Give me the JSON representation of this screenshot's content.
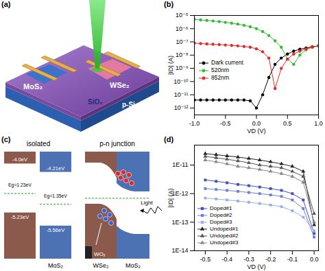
{
  "chart_data": [
    {
      "type": "line",
      "panel_label": "(b)",
      "x_label": "VD (V)",
      "y_label": "|ID| (A)",
      "log": "y",
      "grid": false,
      "legend": "center left",
      "marker": "circle",
      "line_style": "solid",
      "xlim": [
        -1,
        1
      ],
      "xticks": [
        {
          "value": -1,
          "label": "-1.0"
        },
        {
          "value": -0.5,
          "label": "-0.5"
        },
        {
          "value": 0,
          "label": "0.0"
        },
        {
          "value": 0.5,
          "label": "0.5"
        },
        {
          "value": 1,
          "label": "1.0"
        }
      ],
      "ylim": [
        3e-13,
        1e-05
      ],
      "yticks": [
        {
          "value": 1e-12,
          "label": "10⁻¹²"
        },
        {
          "value": 1e-11,
          "label": "10⁻¹¹"
        },
        {
          "value": 1e-10,
          "label": "10⁻¹⁰"
        },
        {
          "value": 1e-09,
          "label": "10⁻⁹"
        },
        {
          "value": 1e-08,
          "label": "10⁻⁸"
        },
        {
          "value": 1e-07,
          "label": "10⁻⁷"
        },
        {
          "value": 1e-06,
          "label": "10⁻⁶"
        },
        {
          "value": 1e-05,
          "label": "10⁻⁵"
        }
      ],
      "x": [
        -1.0,
        -0.9,
        -0.8,
        -0.7,
        -0.6,
        -0.5,
        -0.4,
        -0.3,
        -0.2,
        -0.1,
        0.0,
        0.1,
        0.2,
        0.3,
        0.4,
        0.5,
        0.6,
        0.7,
        0.8,
        0.9,
        1.0
      ],
      "series": [
        {
          "name": "Dark current",
          "color": "#000000",
          "values": [
            4e-12,
            4e-12,
            4e-12,
            4e-12,
            4e-12,
            4e-12,
            4e-12,
            4e-12,
            4e-12,
            3.5e-12,
            1e-12,
            1e-11,
            2e-10,
            2e-09,
            6e-09,
            1.2e-08,
            2e-08,
            2.8e-08,
            3.5e-08,
            4.2e-08,
            5e-08
          ]
        },
        {
          "name": "520nm",
          "color": "#33bb33",
          "values": [
            5e-06,
            4.6e-06,
            4.2e-06,
            3.8e-06,
            3.4e-06,
            3e-06,
            2.6e-06,
            2.2e-06,
            1.8e-06,
            1.4e-06,
            1e-06,
            6e-07,
            3e-07,
            1.2e-07,
            4e-08,
            5e-09,
            2e-09,
            1e-08,
            2.5e-08,
            4e-08,
            5e-08
          ]
        },
        {
          "name": "852nm",
          "color": "#e8262a",
          "values": [
            8e-08,
            7.5e-08,
            7e-08,
            6.6e-08,
            6.2e-08,
            5.8e-08,
            5.4e-08,
            5e-08,
            4.5e-08,
            4e-08,
            3e-08,
            1.8e-08,
            6e-09,
            3e-11,
            1e-09,
            5e-09,
            1.2e-08,
            2e-08,
            3e-08,
            4e-08,
            5e-08
          ]
        }
      ]
    },
    {
      "type": "line",
      "panel_label": "(d)",
      "x_label": "VD (V)",
      "y_label": "|ID| (A)",
      "log": "y",
      "grid": false,
      "legend": "lower left",
      "line_style": "solid",
      "xlim": [
        -0.55,
        0.02
      ],
      "xticks": [
        {
          "value": -0.5,
          "label": "-0.5"
        },
        {
          "value": -0.4,
          "label": "-0.4"
        },
        {
          "value": -0.3,
          "label": "-0.3"
        },
        {
          "value": -0.2,
          "label": "-0.2"
        },
        {
          "value": -0.1,
          "label": "-0.1"
        },
        {
          "value": 0,
          "label": "0.0"
        }
      ],
      "ylim": [
        1e-14,
        5e-11
      ],
      "yticks": [
        {
          "value": 1e-14,
          "label": "1E-14"
        },
        {
          "value": 1e-13,
          "label": "1E-13"
        },
        {
          "value": 1e-12,
          "label": "1E-12"
        },
        {
          "value": 1e-11,
          "label": "1E-11"
        }
      ],
      "x": [
        -0.5,
        -0.45,
        -0.4,
        -0.35,
        -0.3,
        -0.25,
        -0.2,
        -0.15,
        -0.1,
        -0.05,
        0.0
      ],
      "series": [
        {
          "name": "Doped#1",
          "color": "#3a4fc0",
          "marker": "square",
          "values": [
            3e-12,
            2.7e-12,
            2.4e-12,
            2.1e-12,
            1.9e-12,
            1.7e-12,
            1.5e-12,
            1.3e-12,
            1e-12,
            6e-13,
            4e-14
          ]
        },
        {
          "name": "Doped#2",
          "color": "#6a80d8",
          "marker": "square",
          "values": [
            1.5e-12,
            1.4e-12,
            1.3e-12,
            1.2e-12,
            1.1e-12,
            1e-12,
            9e-13,
            8e-13,
            6e-13,
            3e-13,
            3e-14
          ]
        },
        {
          "name": "Doped#3",
          "color": "#9aaee8",
          "marker": "square",
          "values": [
            7e-13,
            6.5e-13,
            6e-13,
            5.5e-13,
            5e-13,
            4.5e-13,
            4e-13,
            3.5e-13,
            2.5e-13,
            1.5e-13,
            5e-14
          ]
        },
        {
          "name": "Undoped#1",
          "color": "#222222",
          "marker": "triangle",
          "values": [
            2.5e-11,
            2.3e-11,
            2.1e-11,
            1.9e-11,
            1.7e-11,
            1.5e-11,
            1.3e-11,
            1.1e-11,
            9e-12,
            6e-12,
            8e-14
          ]
        },
        {
          "name": "Undoped#2",
          "color": "#555555",
          "marker": "triangle",
          "values": [
            2e-11,
            1.8e-11,
            1.6e-11,
            1.4e-11,
            1.2e-11,
            1e-11,
            9e-12,
            8e-12,
            6e-12,
            4e-12,
            2e-13
          ]
        },
        {
          "name": "Undoped#3",
          "color": "#888888",
          "marker": "triangle",
          "values": [
            1.5e-11,
            1.3e-11,
            1.1e-11,
            9e-12,
            8e-12,
            7e-12,
            6e-12,
            5e-12,
            4e-12,
            2.5e-12,
            1e-13
          ]
        }
      ]
    }
  ],
  "diagram_a": {
    "panel_label": "(a)",
    "flake_left": "MoS₂",
    "flake_right": "WSe₂",
    "oxide": "SiO₂",
    "substrate": "p-Si"
  },
  "diagram_c": {
    "panel_label": "(c)",
    "isolated": {
      "title": "isolated",
      "right_name": "MoS₂",
      "wse2": {
        "cb": {
          "value": -4.0,
          "label": "-4.0eV"
        },
        "vb": {
          "value": -5.23,
          "label": "-5.23eV"
        },
        "gap_label": "Eg=1.23eV"
      },
      "mos2": {
        "cb": {
          "value": -4.21,
          "label": "-4.21eV"
        },
        "vb": {
          "value": -5.56,
          "label": "-5.56eV"
        },
        "gap_label": "Eg=1.35eV"
      }
    },
    "junction": {
      "title": "p-n junction",
      "left_name": "WSe₂",
      "right_name": "MoS₂",
      "oxide": "WOₓ",
      "light": "Light"
    }
  }
}
